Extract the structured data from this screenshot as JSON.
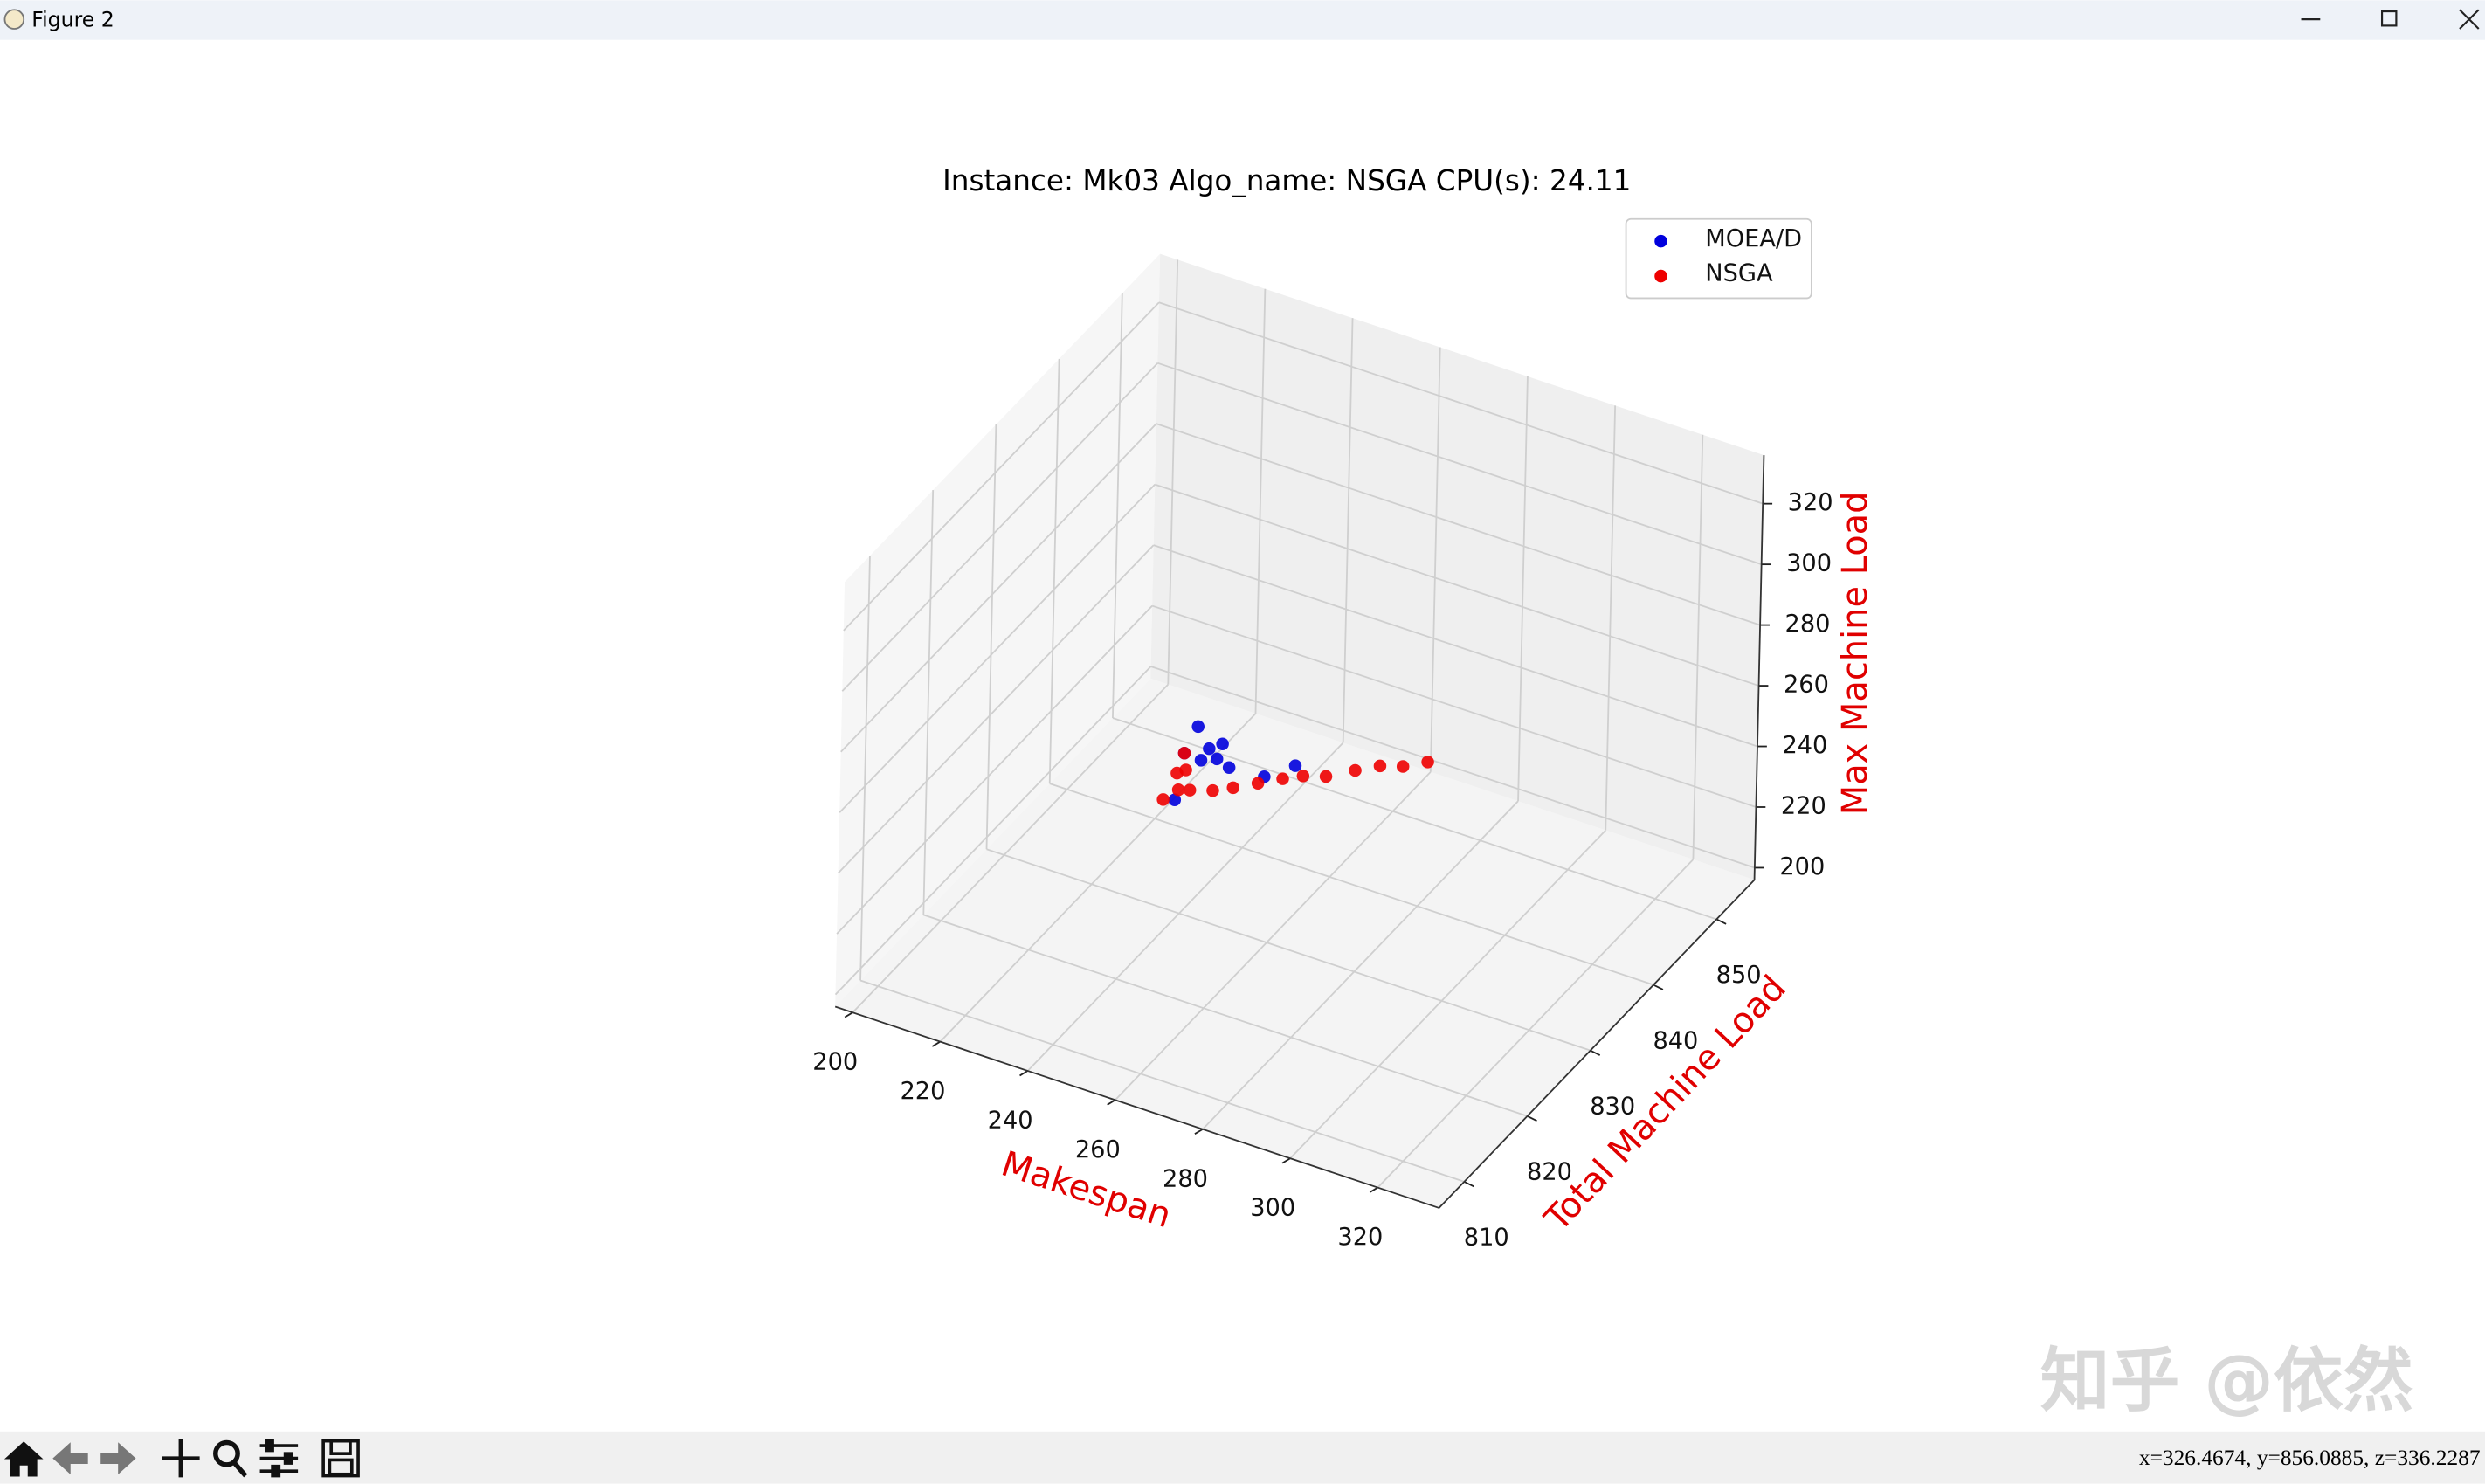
{
  "window": {
    "title": "Figure 2",
    "status": "x=326.4674, y=856.0885, z=336.2287",
    "watermark": "知乎 @依然"
  },
  "chart_data": {
    "type": "scatter3d",
    "title": "Instance: Mk03 Algo_name: NSGA CPU(s): 24.11",
    "xlabel": "Makespan",
    "ylabel": "Total Machine Load",
    "zlabel": "Max Machine Load",
    "axis_label_color": "#e00000",
    "legend": "upper right",
    "xlim": [
      196,
      334
    ],
    "ylim": [
      806,
      856
    ],
    "zlim": [
      196,
      336
    ],
    "xticks": [
      200,
      220,
      240,
      260,
      280,
      300,
      320
    ],
    "yticks": [
      810,
      820,
      830,
      840,
      850
    ],
    "zticks": [
      200,
      220,
      240,
      260,
      280,
      300,
      320
    ],
    "grid": true,
    "series": [
      {
        "name": "MOEA/D",
        "color": "#0000dd",
        "x": [
          228,
          232,
          239,
          242,
          240,
          252,
          274,
          267,
          244,
          245
        ],
        "y": [
          841,
          836,
          835,
          835,
          833,
          829,
          824,
          824,
          826,
          832
        ],
        "z": [
          228,
          232,
          239,
          242,
          240,
          252,
          274,
          267,
          244,
          245
        ]
      },
      {
        "name": "NSGA",
        "color": "#ee0000",
        "x": [
          240,
          242,
          246,
          236,
          238,
          232,
          254,
          260,
          267,
          274,
          280,
          288,
          296,
          303,
          311,
          318
        ],
        "y": [
          827,
          828,
          827,
          832,
          832,
          836,
          825,
          824,
          823,
          822,
          821,
          819,
          818,
          817,
          815,
          814
        ],
        "z": [
          240,
          242,
          246,
          236,
          238,
          232,
          254,
          260,
          267,
          274,
          280,
          288,
          296,
          303,
          311,
          318
        ]
      }
    ]
  }
}
